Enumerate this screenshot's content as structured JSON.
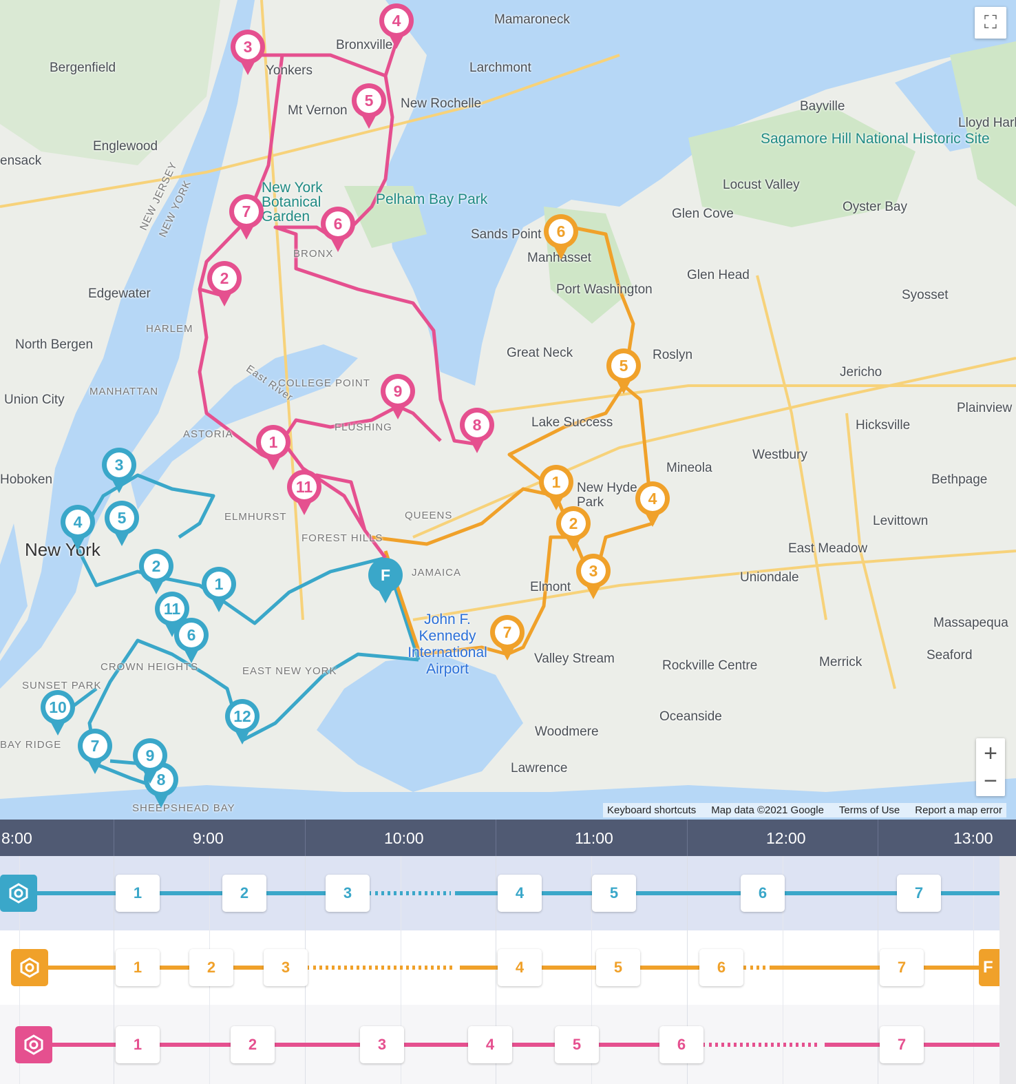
{
  "map": {
    "labels": [
      "Bergenfield",
      "Englewood",
      "ensack",
      "Edgewater",
      "North Bergen",
      "Union City",
      "Hoboken",
      "New York",
      "MANHATTAN",
      "HARLEM",
      "ASTORIA",
      "QUEENS",
      "JAMAICA",
      "FOREST HILLS",
      "ELMHURST",
      "COLLEGE POINT",
      "FLUSHING",
      "EAST NEW YORK",
      "SUNSET PARK",
      "BAY RIDGE",
      "SHEEPSHEAD BAY",
      "CROWN HEIGHTS",
      "Yonkers",
      "Bronxville",
      "Mamaroneck",
      "Larchmont",
      "Mt Vernon",
      "New Rochelle",
      "New York Botanical Garden",
      "Pelham Bay Park",
      "BRONX",
      "Bayville",
      "Lloyd Harbor",
      "Sagamore Hill National Historic Site",
      "Locust Valley",
      "Glen Cove",
      "Oyster Bay",
      "Sands Point",
      "Manhasset",
      "Port Washington",
      "Glen Head",
      "Syosset",
      "Great Neck",
      "Roslyn",
      "Jericho",
      "Lake Success",
      "Hicksville",
      "Plainview",
      "Westbury",
      "Mineola",
      "New Hyde Park",
      "Bethpage",
      "Levittown",
      "East Meadow",
      "Uniondale",
      "Elmont",
      "John F. Kennedy International Airport",
      "Valley Stream",
      "Rockville Centre",
      "Merrick",
      "Massapequa",
      "Seaford",
      "Oceanside",
      "Woodmere",
      "Lawrence",
      "East River",
      "NEW JERSEY",
      "NEW YORK"
    ],
    "controls": {
      "fullscreen": "fullscreen-icon",
      "zoom_in": "+",
      "zoom_out": "−"
    },
    "attribution": [
      "Keyboard shortcuts",
      "Map data ©2021 Google",
      "Terms of Use",
      "Report a map error"
    ]
  },
  "routes": [
    {
      "color": "#3aa7c9",
      "stops": [
        "1",
        "2",
        "3",
        "4",
        "5",
        "6",
        "7",
        "8",
        "9",
        "10",
        "11",
        "12"
      ],
      "finish": "F"
    },
    {
      "color": "#f0a12a",
      "stops": [
        "1",
        "2",
        "3",
        "4",
        "5",
        "6",
        "7"
      ]
    },
    {
      "color": "#e5508f",
      "stops": [
        "1",
        "2",
        "3",
        "4",
        "5",
        "6",
        "7",
        "8",
        "9",
        "11"
      ]
    }
  ],
  "timeline": {
    "hours": [
      "8:00",
      "9:00",
      "10:00",
      "11:00",
      "12:00",
      "13:00"
    ],
    "rows": [
      {
        "color": "#3aa7c9",
        "icon": "depot-icon",
        "stops": [
          "1",
          "2",
          "3",
          "4",
          "5",
          "6",
          "7"
        ]
      },
      {
        "color": "#f0a12a",
        "icon": "depot-icon",
        "stops": [
          "1",
          "2",
          "3",
          "4",
          "5",
          "6",
          "7"
        ],
        "finish": "F"
      },
      {
        "color": "#e5508f",
        "icon": "depot-icon",
        "stops": [
          "1",
          "2",
          "3",
          "4",
          "5",
          "6",
          "7"
        ]
      }
    ]
  }
}
